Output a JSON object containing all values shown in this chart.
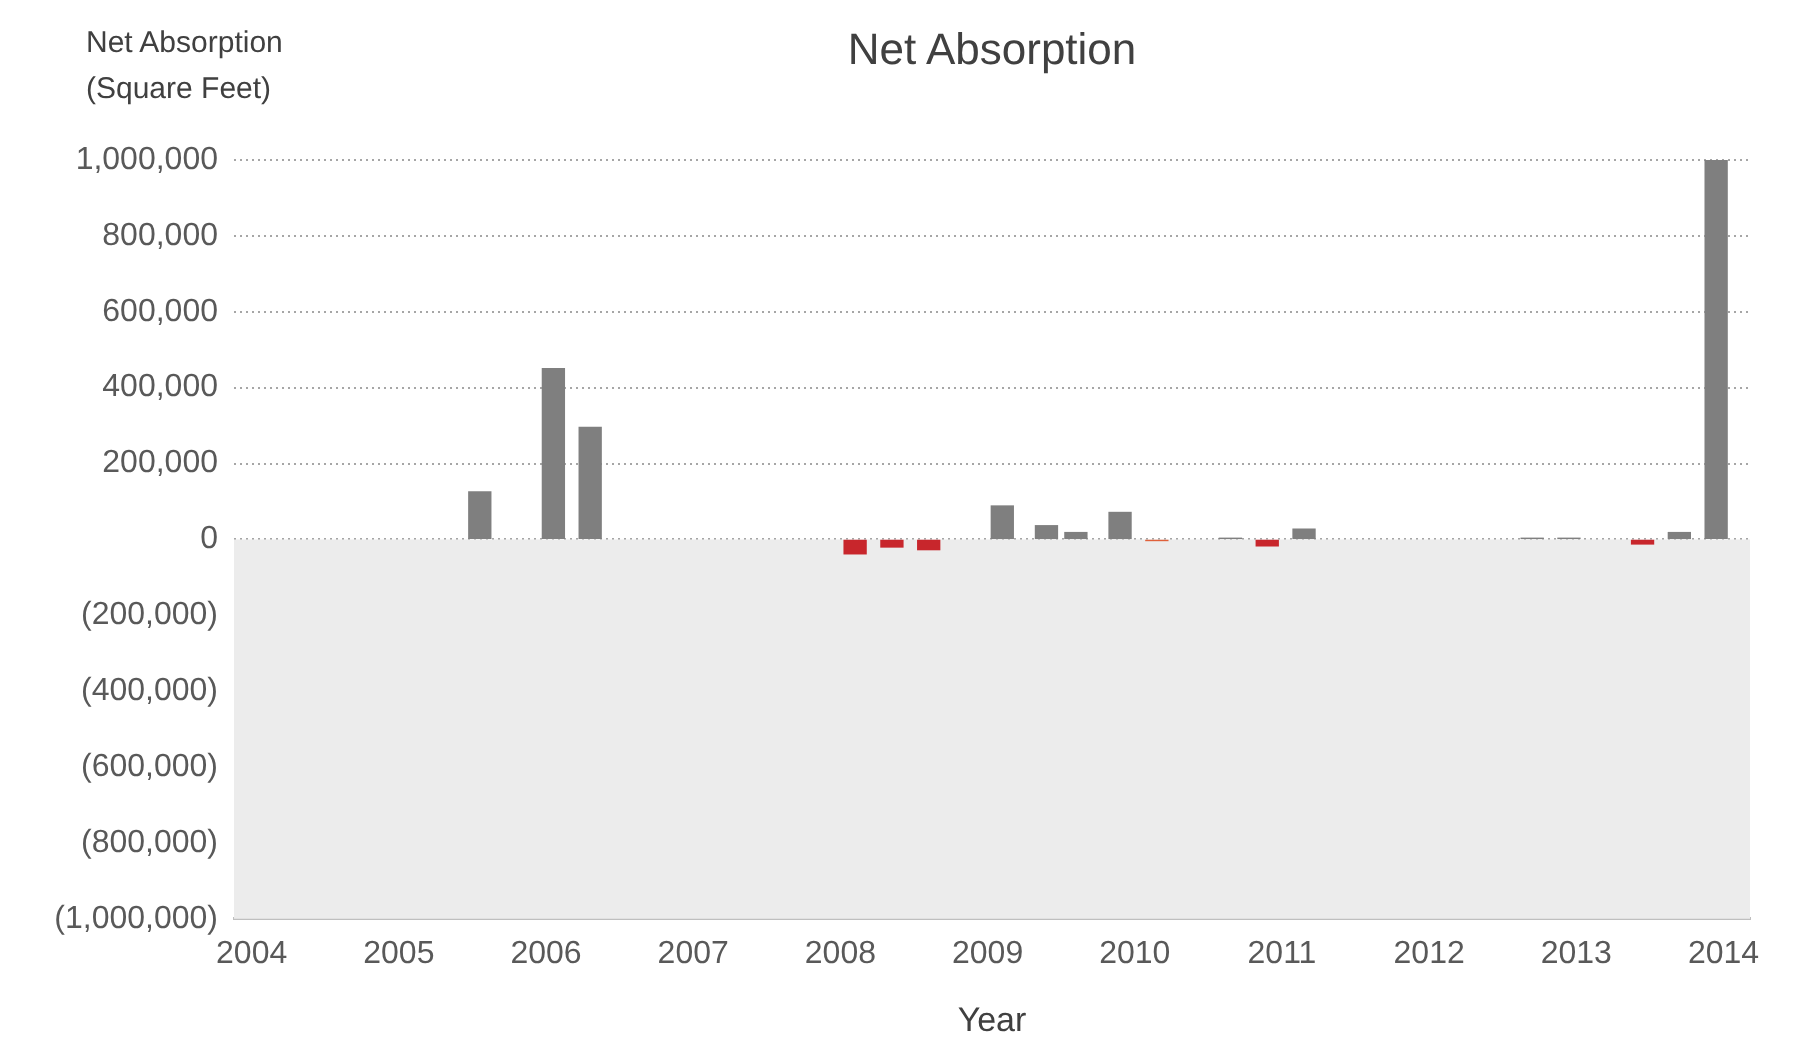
{
  "chart_data": {
    "type": "bar",
    "title": "Net Absorption",
    "ylabel": "Net Absorption (Square Feet)",
    "xlabel": "Year",
    "x": [
      2005.55,
      2006.05,
      2006.3,
      2008.1,
      2008.35,
      2008.6,
      2009.1,
      2009.4,
      2009.6,
      2009.9,
      2010.15,
      2010.65,
      2010.9,
      2011.15,
      2012.7,
      2012.95,
      2013.45,
      2013.7,
      2013.95
    ],
    "values": [
      125000,
      450000,
      295000,
      -38000,
      -20000,
      -27000,
      88000,
      36000,
      18000,
      71000,
      -3000,
      3000,
      -17000,
      27000,
      3000,
      3000,
      -12000,
      18000,
      1000000
    ],
    "colors": [
      "#7f7f7f",
      "#7f7f7f",
      "#7f7f7f",
      "#c8262c",
      "#c8262c",
      "#c8262c",
      "#7f7f7f",
      "#7f7f7f",
      "#7f7f7f",
      "#7f7f7f",
      "#e0603a",
      "#7f7f7f",
      "#c8262c",
      "#7f7f7f",
      "#7f7f7f",
      "#7f7f7f",
      "#c8262c",
      "#7f7f7f",
      "#7f7f7f"
    ],
    "xlim": [
      2003.88,
      2014.18
    ],
    "xticks": [
      2004,
      2005,
      2006,
      2007,
      2008,
      2009,
      2010,
      2011,
      2012,
      2013,
      2014
    ],
    "ylim": [
      -1000000,
      1000000
    ],
    "yticks": [
      {
        "value": -1000000,
        "label": "(1,000,000)"
      },
      {
        "value": -800000,
        "label": "(800,000)"
      },
      {
        "value": -600000,
        "label": "(600,000)"
      },
      {
        "value": -400000,
        "label": "(400,000)"
      },
      {
        "value": -200000,
        "label": "(200,000)"
      },
      0,
      {
        "value": 200000,
        "label": "200,000"
      },
      {
        "value": 400000,
        "label": "400,000"
      },
      {
        "value": 600000,
        "label": "600,000"
      },
      {
        "value": 800000,
        "label": "800,000"
      },
      {
        "value": 1000000,
        "label": "1,000,000"
      }
    ],
    "bands": [
      {
        "axis": "y",
        "from": -1000000,
        "to": 0,
        "color": "#ececec"
      }
    ],
    "grid": "y",
    "legend": false
  }
}
